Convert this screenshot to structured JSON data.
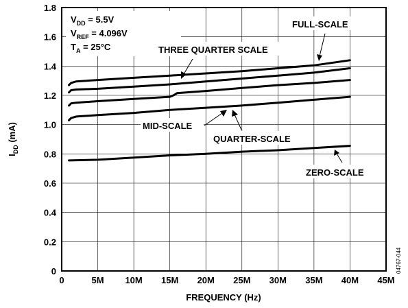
{
  "chart_data": {
    "type": "line",
    "xlabel": "FREQUENCY (Hz)",
    "ylabel_main": "I",
    "ylabel_sub": "DD",
    "ylabel_unit": " (mA)",
    "xlim": [
      0,
      45
    ],
    "ylim": [
      0,
      1.8
    ],
    "x_ticks": [
      0,
      5,
      10,
      15,
      20,
      25,
      30,
      35,
      40,
      45
    ],
    "x_tick_labels": [
      "0",
      "5M",
      "10M",
      "15M",
      "20M",
      "25M",
      "30M",
      "35M",
      "40M",
      "45M"
    ],
    "y_ticks": [
      0,
      0.2,
      0.4,
      0.6,
      0.8,
      1.0,
      1.2,
      1.4,
      1.6,
      1.8
    ],
    "y_tick_labels": [
      "0",
      "0.2",
      "0.4",
      "0.6",
      "0.8",
      "1.0",
      "1.2",
      "1.4",
      "1.6",
      "1.8"
    ],
    "conditions": [
      {
        "main": "V",
        "sub": "DD",
        "rest": " = 5.5V"
      },
      {
        "main": "V",
        "sub": "REF",
        "rest": " = 4.096V"
      },
      {
        "main": "T",
        "sub": "A",
        "rest": " = 25°C"
      }
    ],
    "series": [
      {
        "name": "FULL-SCALE",
        "x": [
          1,
          1.3,
          2,
          5,
          10,
          15,
          20,
          25,
          30,
          35,
          40
        ],
        "y": [
          1.27,
          1.285,
          1.295,
          1.305,
          1.32,
          1.335,
          1.35,
          1.365,
          1.385,
          1.405,
          1.44
        ]
      },
      {
        "name": "THREE QUARTER SCALE",
        "x": [
          1,
          1.3,
          2,
          5,
          10,
          15,
          20,
          25,
          30,
          35,
          40
        ],
        "y": [
          1.22,
          1.235,
          1.24,
          1.245,
          1.26,
          1.275,
          1.295,
          1.315,
          1.335,
          1.355,
          1.385
        ]
      },
      {
        "name": "MID-SCALE",
        "x": [
          1,
          1.3,
          2,
          5,
          10,
          15,
          15.5,
          16,
          20,
          25,
          30,
          35,
          40
        ],
        "y": [
          1.13,
          1.145,
          1.15,
          1.16,
          1.175,
          1.19,
          1.2,
          1.215,
          1.23,
          1.25,
          1.27,
          1.285,
          1.305
        ]
      },
      {
        "name": "QUARTER-SCALE",
        "x": [
          1,
          1.3,
          2,
          5,
          10,
          15,
          20,
          25,
          30,
          35,
          40
        ],
        "y": [
          1.03,
          1.045,
          1.055,
          1.065,
          1.08,
          1.1,
          1.115,
          1.13,
          1.15,
          1.17,
          1.19
        ]
      },
      {
        "name": "ZERO-SCALE",
        "x": [
          1,
          5,
          10,
          15,
          20,
          25,
          30,
          35,
          40
        ],
        "y": [
          0.755,
          0.76,
          0.775,
          0.79,
          0.8,
          0.815,
          0.825,
          0.84,
          0.855
        ]
      }
    ],
    "annotations": [
      {
        "text": "FULL-SCALE",
        "series": "FULL-SCALE"
      },
      {
        "text": "THREE QUARTER SCALE",
        "series": "THREE QUARTER SCALE"
      },
      {
        "text": "MID-SCALE",
        "series": "MID-SCALE"
      },
      {
        "text": "QUARTER-SCALE",
        "series": "QUARTER-SCALE"
      },
      {
        "text": "ZERO-SCALE",
        "series": "ZERO-SCALE"
      }
    ],
    "figure_id": "04767-044",
    "grid": true,
    "legend": "none"
  }
}
